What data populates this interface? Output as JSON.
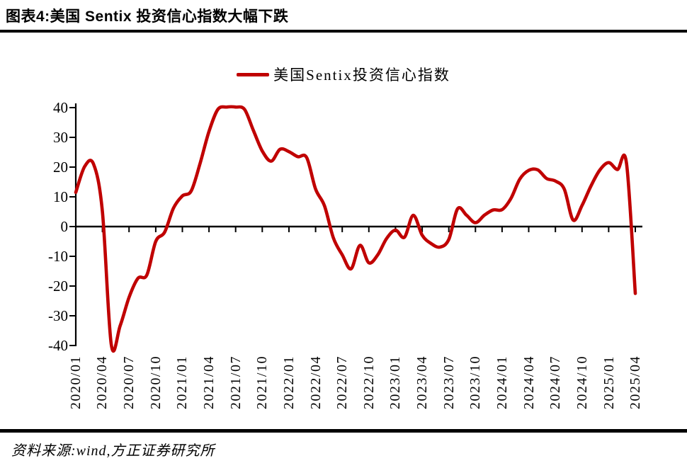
{
  "header": {
    "title": "图表4:美国 Sentix 投资信心指数大幅下跌"
  },
  "footer": {
    "source": "资料来源:wind,方正证券研究所"
  },
  "chart_data": {
    "type": "line",
    "title": "图表4:美国 Sentix 投资信心指数大幅下跌",
    "legend": [
      "美国Sentix投资信心指数"
    ],
    "legend_position": "top-center",
    "line_color": "#C00000",
    "axis_color": "#000000",
    "grid": false,
    "smoothed": true,
    "ylim": [
      -40,
      40
    ],
    "y_ticks": [
      "40",
      "30",
      "20",
      "10",
      "0",
      "-10",
      "-20",
      "-30",
      "-40"
    ],
    "x_freq": "monthly",
    "x_start": "2020/01",
    "x_end": "2025/04",
    "x_tick_labels": [
      "2020/01",
      "2020/04",
      "2020/07",
      "2020/10",
      "2021/01",
      "2021/04",
      "2021/07",
      "2021/10",
      "2022/01",
      "2022/04",
      "2022/07",
      "2022/10",
      "2023/01",
      "2023/04",
      "2023/07",
      "2023/10",
      "2024/01",
      "2024/04",
      "2024/07",
      "2024/10",
      "2025/01",
      "2025/04"
    ],
    "series": [
      {
        "name": "美国Sentix投资信心指数",
        "values": [
          11.5,
          20.2,
          21.0,
          5.0,
          -39.8,
          -33.3,
          -23.8,
          -17.4,
          -16.3,
          -5.0,
          -1.9,
          6.2,
          10.3,
          12.0,
          21.3,
          32.0,
          39.4,
          40.2,
          40.2,
          39.4,
          32.3,
          25.4,
          22.0,
          26.0,
          25.2,
          23.5,
          23.2,
          12.6,
          7.0,
          -3.8,
          -9.5,
          -14.2,
          -6.3,
          -12.2,
          -9.5,
          -4.0,
          -1.2,
          -3.6,
          3.8,
          -2.9,
          -5.7,
          -6.9,
          -4.3,
          6.0,
          3.8,
          1.3,
          3.8,
          5.6,
          5.7,
          9.5,
          16.0,
          18.9,
          19.1,
          16.2,
          15.3,
          12.6,
          2.2,
          7.1,
          13.6,
          19.0,
          21.5,
          19.2,
          21.4,
          -22.5
        ]
      }
    ]
  }
}
